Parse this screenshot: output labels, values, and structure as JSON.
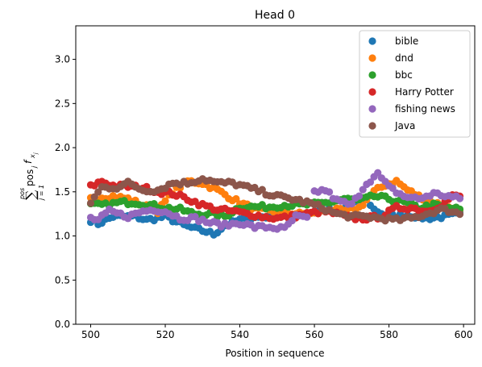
{
  "chart_data": {
    "type": "scatter",
    "title": "Head 0",
    "xlabel": "Position in sequence",
    "ylabel_sum_upper": "pos",
    "ylabel_sum_lower": "j = 1",
    "ylabel_term": "pos",
    "ylabel_term_sub": "j",
    "ylabel_f": "f",
    "ylabel_f_sub": "x",
    "ylabel_f_subsub": "j",
    "xlim": [
      496,
      603
    ],
    "ylim": [
      0,
      3.38
    ],
    "xticks": [
      500,
      520,
      540,
      560,
      580,
      600
    ],
    "yticks": [
      0.0,
      0.5,
      1.0,
      1.5,
      2.0,
      2.5,
      3.0
    ],
    "xtick_labels": [
      "500",
      "520",
      "540",
      "560",
      "580",
      "600"
    ],
    "ytick_labels": [
      "0.0",
      "0.5",
      "1.0",
      "1.5",
      "2.0",
      "2.5",
      "3.0"
    ],
    "grid": false,
    "legend_position": "top-right",
    "x_start": 500,
    "x_end": 599,
    "series": [
      {
        "name": "bible",
        "color": "#1f77b4",
        "knots": [
          [
            500,
            1.18
          ],
          [
            502,
            1.14
          ],
          [
            506,
            1.22
          ],
          [
            512,
            1.22
          ],
          [
            515,
            1.18
          ],
          [
            520,
            1.22
          ],
          [
            525,
            1.12
          ],
          [
            528,
            1.08
          ],
          [
            531,
            1.05
          ],
          [
            533,
            1.02
          ],
          [
            536,
            1.12
          ],
          [
            540,
            1.18
          ],
          [
            546,
            1.22
          ],
          [
            552,
            1.22
          ],
          [
            558,
            1.25
          ],
          [
            563,
            1.3
          ],
          [
            567,
            1.28
          ],
          [
            571,
            1.38
          ],
          [
            574,
            1.42
          ],
          [
            576,
            1.3
          ],
          [
            580,
            1.22
          ],
          [
            585,
            1.24
          ],
          [
            590,
            1.2
          ],
          [
            595,
            1.22
          ],
          [
            599,
            1.25
          ]
        ]
      },
      {
        "name": "dnd",
        "color": "#ff7f0e",
        "knots": [
          [
            500,
            1.42
          ],
          [
            503,
            1.44
          ],
          [
            506,
            1.45
          ],
          [
            510,
            1.42
          ],
          [
            514,
            1.35
          ],
          [
            518,
            1.28
          ],
          [
            522,
            1.5
          ],
          [
            526,
            1.62
          ],
          [
            530,
            1.6
          ],
          [
            534,
            1.52
          ],
          [
            538,
            1.42
          ],
          [
            541,
            1.36
          ],
          [
            544,
            1.3
          ],
          [
            548,
            1.28
          ],
          [
            552,
            1.27
          ],
          [
            556,
            1.25
          ],
          [
            560,
            1.25
          ],
          [
            564,
            1.3
          ],
          [
            568,
            1.28
          ],
          [
            572,
            1.32
          ],
          [
            576,
            1.5
          ],
          [
            579,
            1.58
          ],
          [
            582,
            1.62
          ],
          [
            585,
            1.52
          ],
          [
            588,
            1.45
          ],
          [
            592,
            1.38
          ],
          [
            596,
            1.32
          ],
          [
            599,
            1.28
          ]
        ]
      },
      {
        "name": "bbc",
        "color": "#2ca02c",
        "knots": [
          [
            500,
            1.35
          ],
          [
            504,
            1.35
          ],
          [
            508,
            1.38
          ],
          [
            512,
            1.38
          ],
          [
            516,
            1.35
          ],
          [
            520,
            1.32
          ],
          [
            524,
            1.3
          ],
          [
            528,
            1.25
          ],
          [
            532,
            1.25
          ],
          [
            536,
            1.22
          ],
          [
            540,
            1.33
          ],
          [
            544,
            1.33
          ],
          [
            548,
            1.33
          ],
          [
            552,
            1.35
          ],
          [
            556,
            1.35
          ],
          [
            560,
            1.36
          ],
          [
            564,
            1.38
          ],
          [
            568,
            1.42
          ],
          [
            572,
            1.4
          ],
          [
            576,
            1.45
          ],
          [
            580,
            1.42
          ],
          [
            584,
            1.38
          ],
          [
            588,
            1.32
          ],
          [
            592,
            1.35
          ],
          [
            596,
            1.32
          ],
          [
            599,
            1.3
          ]
        ]
      },
      {
        "name": "Harry Potter",
        "color": "#d62728",
        "knots": [
          [
            500,
            1.56
          ],
          [
            503,
            1.62
          ],
          [
            506,
            1.57
          ],
          [
            510,
            1.56
          ],
          [
            514,
            1.55
          ],
          [
            518,
            1.5
          ],
          [
            522,
            1.48
          ],
          [
            526,
            1.42
          ],
          [
            530,
            1.35
          ],
          [
            534,
            1.3
          ],
          [
            538,
            1.28
          ],
          [
            542,
            1.25
          ],
          [
            546,
            1.22
          ],
          [
            550,
            1.2
          ],
          [
            554,
            1.22
          ],
          [
            558,
            1.25
          ],
          [
            562,
            1.28
          ],
          [
            566,
            1.25
          ],
          [
            570,
            1.2
          ],
          [
            574,
            1.2
          ],
          [
            578,
            1.22
          ],
          [
            582,
            1.32
          ],
          [
            586,
            1.32
          ],
          [
            590,
            1.28
          ],
          [
            594,
            1.35
          ],
          [
            597,
            1.45
          ],
          [
            599,
            1.45
          ]
        ]
      },
      {
        "name": "fishing news",
        "color": "#9467bd",
        "knots": [
          [
            500,
            1.2
          ],
          [
            502,
            1.18
          ],
          [
            505,
            1.28
          ],
          [
            510,
            1.22
          ],
          [
            514,
            1.28
          ],
          [
            517,
            1.3
          ],
          [
            520,
            1.28
          ],
          [
            524,
            1.2
          ],
          [
            528,
            1.2
          ],
          [
            532,
            1.15
          ],
          [
            536,
            1.12
          ],
          [
            540,
            1.15
          ],
          [
            544,
            1.1
          ],
          [
            548,
            1.1
          ],
          [
            552,
            1.08
          ],
          [
            555,
            1.22
          ],
          [
            558,
            1.2
          ],
          [
            560,
            1.5
          ],
          [
            563,
            1.52
          ],
          [
            566,
            1.4
          ],
          [
            570,
            1.35
          ],
          [
            574,
            1.6
          ],
          [
            577,
            1.7
          ],
          [
            580,
            1.55
          ],
          [
            584,
            1.45
          ],
          [
            588,
            1.42
          ],
          [
            592,
            1.48
          ],
          [
            596,
            1.45
          ],
          [
            599,
            1.42
          ]
        ]
      },
      {
        "name": "Java",
        "color": "#8c564b",
        "knots": [
          [
            500,
            1.38
          ],
          [
            503,
            1.55
          ],
          [
            507,
            1.55
          ],
          [
            510,
            1.6
          ],
          [
            514,
            1.52
          ],
          [
            518,
            1.52
          ],
          [
            522,
            1.6
          ],
          [
            526,
            1.6
          ],
          [
            530,
            1.65
          ],
          [
            534,
            1.6
          ],
          [
            538,
            1.6
          ],
          [
            542,
            1.55
          ],
          [
            546,
            1.5
          ],
          [
            550,
            1.45
          ],
          [
            554,
            1.42
          ],
          [
            558,
            1.38
          ],
          [
            562,
            1.32
          ],
          [
            566,
            1.25
          ],
          [
            570,
            1.22
          ],
          [
            574,
            1.22
          ],
          [
            578,
            1.2
          ],
          [
            582,
            1.18
          ],
          [
            586,
            1.2
          ],
          [
            590,
            1.25
          ],
          [
            594,
            1.3
          ],
          [
            597,
            1.28
          ],
          [
            599,
            1.25
          ]
        ]
      }
    ]
  }
}
